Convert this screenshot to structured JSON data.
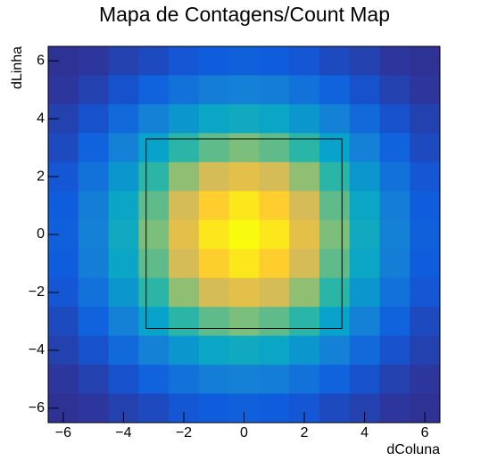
{
  "chart_data": {
    "type": "heatmap",
    "title": "Mapa de Contagens/Count Map",
    "x_label": "dColuna",
    "y_label": "dLinha",
    "x": [
      -6,
      -5,
      -4,
      -3,
      -2,
      -1,
      0,
      1,
      2,
      3,
      4,
      5,
      6
    ],
    "y": [
      6,
      5,
      4,
      3,
      2,
      1,
      0,
      -1,
      -2,
      -3,
      -4,
      -5,
      -6
    ],
    "values": [
      [
        2,
        3,
        6,
        8,
        11,
        13,
        14,
        13,
        11,
        8,
        6,
        3,
        2
      ],
      [
        3,
        6,
        10,
        15,
        20,
        24,
        25,
        24,
        20,
        15,
        10,
        6,
        3
      ],
      [
        6,
        10,
        17,
        25,
        33,
        39,
        41,
        39,
        33,
        25,
        17,
        10,
        6
      ],
      [
        8,
        15,
        25,
        37,
        49,
        57,
        61,
        57,
        49,
        37,
        25,
        15,
        8
      ],
      [
        11,
        20,
        33,
        49,
        64,
        76,
        80,
        76,
        64,
        49,
        33,
        20,
        11
      ],
      [
        13,
        24,
        39,
        57,
        76,
        89,
        95,
        89,
        76,
        57,
        39,
        24,
        13
      ],
      [
        14,
        25,
        41,
        61,
        80,
        95,
        100,
        95,
        80,
        61,
        41,
        25,
        14
      ],
      [
        13,
        24,
        39,
        57,
        76,
        89,
        95,
        89,
        76,
        57,
        39,
        24,
        13
      ],
      [
        11,
        20,
        33,
        49,
        64,
        76,
        80,
        76,
        64,
        49,
        33,
        20,
        11
      ],
      [
        8,
        15,
        25,
        37,
        49,
        57,
        61,
        57,
        49,
        37,
        25,
        15,
        8
      ],
      [
        6,
        10,
        17,
        25,
        33,
        39,
        41,
        39,
        33,
        25,
        17,
        10,
        6
      ],
      [
        3,
        6,
        10,
        15,
        20,
        24,
        25,
        24,
        20,
        15,
        10,
        6,
        3
      ],
      [
        2,
        3,
        6,
        8,
        11,
        13,
        14,
        13,
        11,
        8,
        6,
        3,
        2
      ]
    ],
    "zlim": [
      0,
      100
    ],
    "colormap": [
      "#352a87",
      "#0f5cdd",
      "#1481d6",
      "#06a4ca",
      "#2eb7a4",
      "#87bf77",
      "#d1bb59",
      "#fec832",
      "#f9fb0e"
    ],
    "rectangle": {
      "x": [
        -3.25,
        3.25
      ],
      "y": [
        -3.25,
        3.3
      ]
    },
    "xlim": [
      -6.5,
      6.5
    ],
    "ylim": [
      -6.5,
      6.5
    ],
    "xticks": [
      {
        "value": -6,
        "label": "−6"
      },
      {
        "value": -4,
        "label": "−4"
      },
      {
        "value": -2,
        "label": "−2"
      },
      0,
      2,
      4,
      6
    ],
    "yticks": [
      {
        "value": -6,
        "label": "−6"
      },
      {
        "value": -4,
        "label": "−4"
      },
      {
        "value": -2,
        "label": "−2"
      },
      0,
      2,
      4,
      6
    ]
  }
}
